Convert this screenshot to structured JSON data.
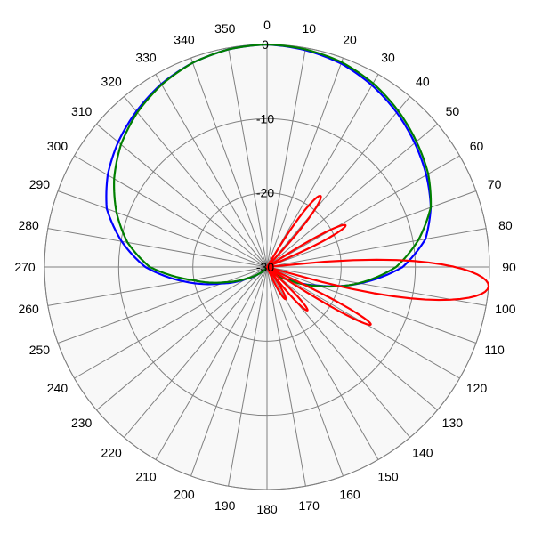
{
  "chart_data": {
    "type": "polar",
    "angle_unit": "degrees",
    "angle_zero": "top",
    "angle_direction": "clockwise",
    "angle_ticks": [
      "0",
      "10",
      "20",
      "30",
      "40",
      "50",
      "60",
      "70",
      "80",
      "90",
      "100",
      "110",
      "120",
      "130",
      "140",
      "150",
      "160",
      "170",
      "180",
      "190",
      "200",
      "210",
      "220",
      "230",
      "240",
      "250",
      "260",
      "270",
      "280",
      "290",
      "300",
      "310",
      "320",
      "330",
      "340",
      "350"
    ],
    "radial_range": [
      -30,
      0
    ],
    "radial_ticks": [
      "-30",
      "-20",
      "-10",
      "0"
    ],
    "grid": true,
    "background": "#f8f8f8",
    "series": [
      {
        "color": "#0000ff",
        "points": [
          [
            0,
            0
          ],
          [
            10,
            -0.3
          ],
          [
            20,
            -0.8
          ],
          [
            30,
            -1.7
          ],
          [
            40,
            -2.8
          ],
          [
            50,
            -4.0
          ],
          [
            60,
            -5.2
          ],
          [
            70,
            -6.5
          ],
          [
            80,
            -8.3
          ],
          [
            90,
            -11.7
          ],
          [
            100,
            -17.3
          ],
          [
            110,
            -22.7
          ],
          [
            120,
            -26.5
          ],
          [
            130,
            -28.5
          ],
          [
            140,
            -29.5
          ],
          [
            150,
            -30
          ],
          [
            210,
            -30
          ],
          [
            220,
            -29.5
          ],
          [
            230,
            -28.6
          ],
          [
            240,
            -26.8
          ],
          [
            250,
            -23.5
          ],
          [
            260,
            -18.7
          ],
          [
            270,
            -13.6
          ],
          [
            280,
            -10.1
          ],
          [
            290,
            -7.0
          ],
          [
            300,
            -5.2
          ],
          [
            310,
            -3.8
          ],
          [
            320,
            -2.6
          ],
          [
            330,
            -1.5
          ],
          [
            340,
            -0.7
          ],
          [
            350,
            -0.2
          ],
          [
            360,
            0
          ]
        ]
      },
      {
        "color": "#007f00",
        "points": [
          [
            0,
            0
          ],
          [
            10,
            -0.2
          ],
          [
            20,
            -0.6
          ],
          [
            30,
            -1.4
          ],
          [
            40,
            -2.5
          ],
          [
            50,
            -3.7
          ],
          [
            60,
            -4.9
          ],
          [
            70,
            -6.5
          ],
          [
            80,
            -9.3
          ],
          [
            90,
            -12.6
          ],
          [
            100,
            -17.4
          ],
          [
            110,
            -22.5
          ],
          [
            120,
            -26.3
          ],
          [
            130,
            -28.4
          ],
          [
            140,
            -29.4
          ],
          [
            150,
            -30
          ],
          [
            210,
            -30
          ],
          [
            220,
            -29.5
          ],
          [
            230,
            -28.6
          ],
          [
            240,
            -27.0
          ],
          [
            250,
            -24.0
          ],
          [
            260,
            -19.8
          ],
          [
            270,
            -14.2
          ],
          [
            280,
            -10.9
          ],
          [
            290,
            -8.4
          ],
          [
            300,
            -6.2
          ],
          [
            310,
            -4.3
          ],
          [
            320,
            -2.8
          ],
          [
            330,
            -1.6
          ],
          [
            340,
            -0.7
          ],
          [
            350,
            -0.2
          ],
          [
            360,
            0
          ]
        ]
      },
      {
        "color": "#ff0000",
        "lobes": [
          {
            "center": 37,
            "halfwidth": 6,
            "peak": -18
          },
          {
            "center": 62,
            "halfwidth": 5,
            "peak": -18
          },
          {
            "center": 95,
            "halfwidth": 11,
            "peak": 0
          },
          {
            "center": 119,
            "halfwidth": 4,
            "peak": -14
          },
          {
            "center": 137,
            "halfwidth": 5,
            "peak": -22
          },
          {
            "center": 150,
            "halfwidth": 6,
            "peak": -25
          }
        ]
      }
    ]
  }
}
